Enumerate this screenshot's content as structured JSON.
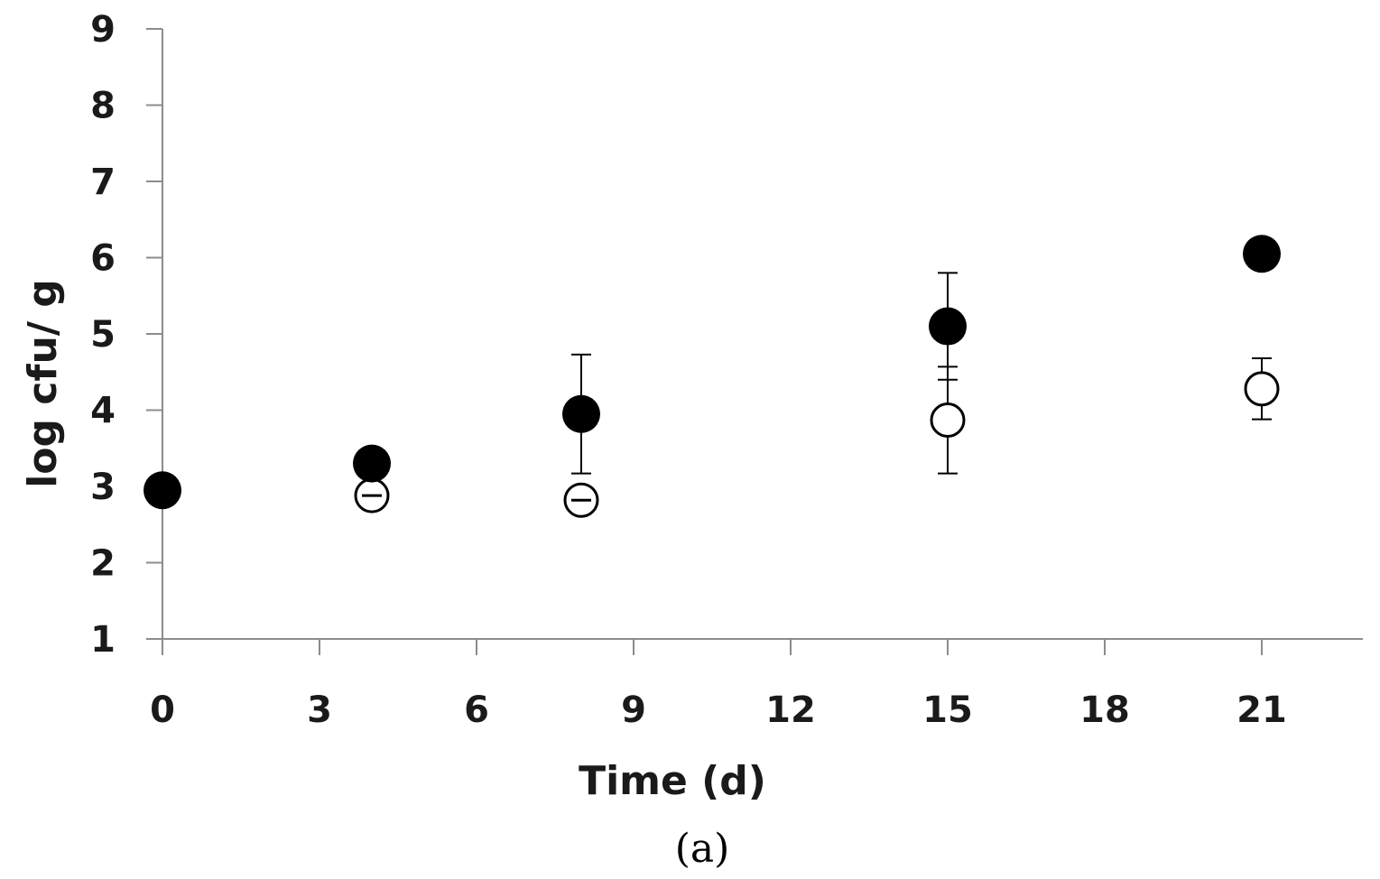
{
  "chart_data": {
    "type": "scatter",
    "title": "",
    "xlabel": "Time (d)",
    "ylabel": "log cfu/ g",
    "panel_label": "(a)",
    "xlim": [
      0,
      23
    ],
    "ylim": [
      1,
      9
    ],
    "x_ticks": [
      0,
      3,
      6,
      9,
      12,
      15,
      18,
      21
    ],
    "y_ticks": [
      1,
      2,
      3,
      4,
      5,
      6,
      7,
      8,
      9
    ],
    "grid": false,
    "legend": "none",
    "series": [
      {
        "marker": "filled-circle",
        "color": "#000000",
        "points": [
          {
            "x": 0,
            "y": 2.95,
            "err": 0
          },
          {
            "x": 4,
            "y": 3.3,
            "err": 0
          },
          {
            "x": 8,
            "y": 3.95,
            "err": 0.78
          },
          {
            "x": 15,
            "y": 5.1,
            "err": 0.7
          },
          {
            "x": 21,
            "y": 6.05,
            "err": 0
          }
        ]
      },
      {
        "marker": "open-circle",
        "color": "#000000",
        "points": [
          {
            "x": 4,
            "y": 2.88,
            "err": 0.02
          },
          {
            "x": 8,
            "y": 2.82,
            "err": 0.02
          },
          {
            "x": 15,
            "y": 3.87,
            "err": 0.7
          },
          {
            "x": 21,
            "y": 4.28,
            "err": 0.4
          }
        ]
      }
    ]
  }
}
